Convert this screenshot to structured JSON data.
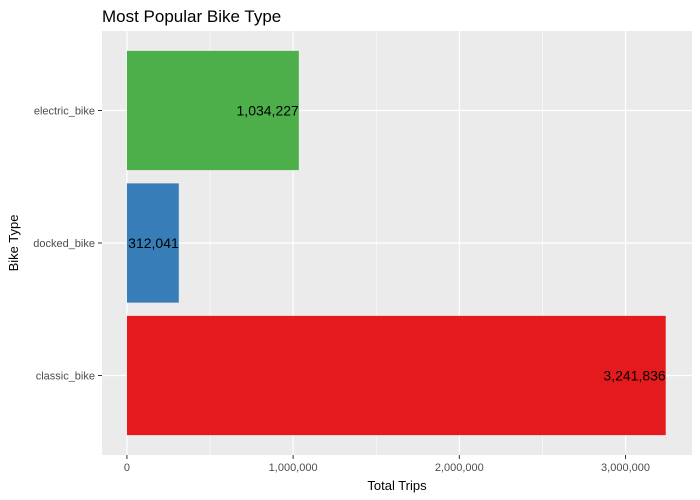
{
  "chart_data": {
    "type": "bar",
    "orientation": "horizontal",
    "title": "Most Popular Bike Type",
    "xlabel": "Total Trips",
    "ylabel": "Bike Type",
    "categories": [
      "classic_bike",
      "docked_bike",
      "electric_bike"
    ],
    "values": [
      3241836,
      312041,
      1034227
    ],
    "data_labels": [
      "3,241,836",
      "312,041",
      "1,034,227"
    ],
    "colors": [
      "#E41A1C",
      "#377EB8",
      "#4DAF4A"
    ],
    "xlim": [
      -150000,
      3400000
    ],
    "x_ticks": [
      0,
      1000000,
      2000000,
      3000000
    ],
    "x_tick_labels": [
      "0",
      "1,000,000",
      "2,000,000",
      "3,000,000"
    ],
    "grid": true,
    "panel_background": "#EBEBEB",
    "grid_color": "#FFFFFF"
  }
}
